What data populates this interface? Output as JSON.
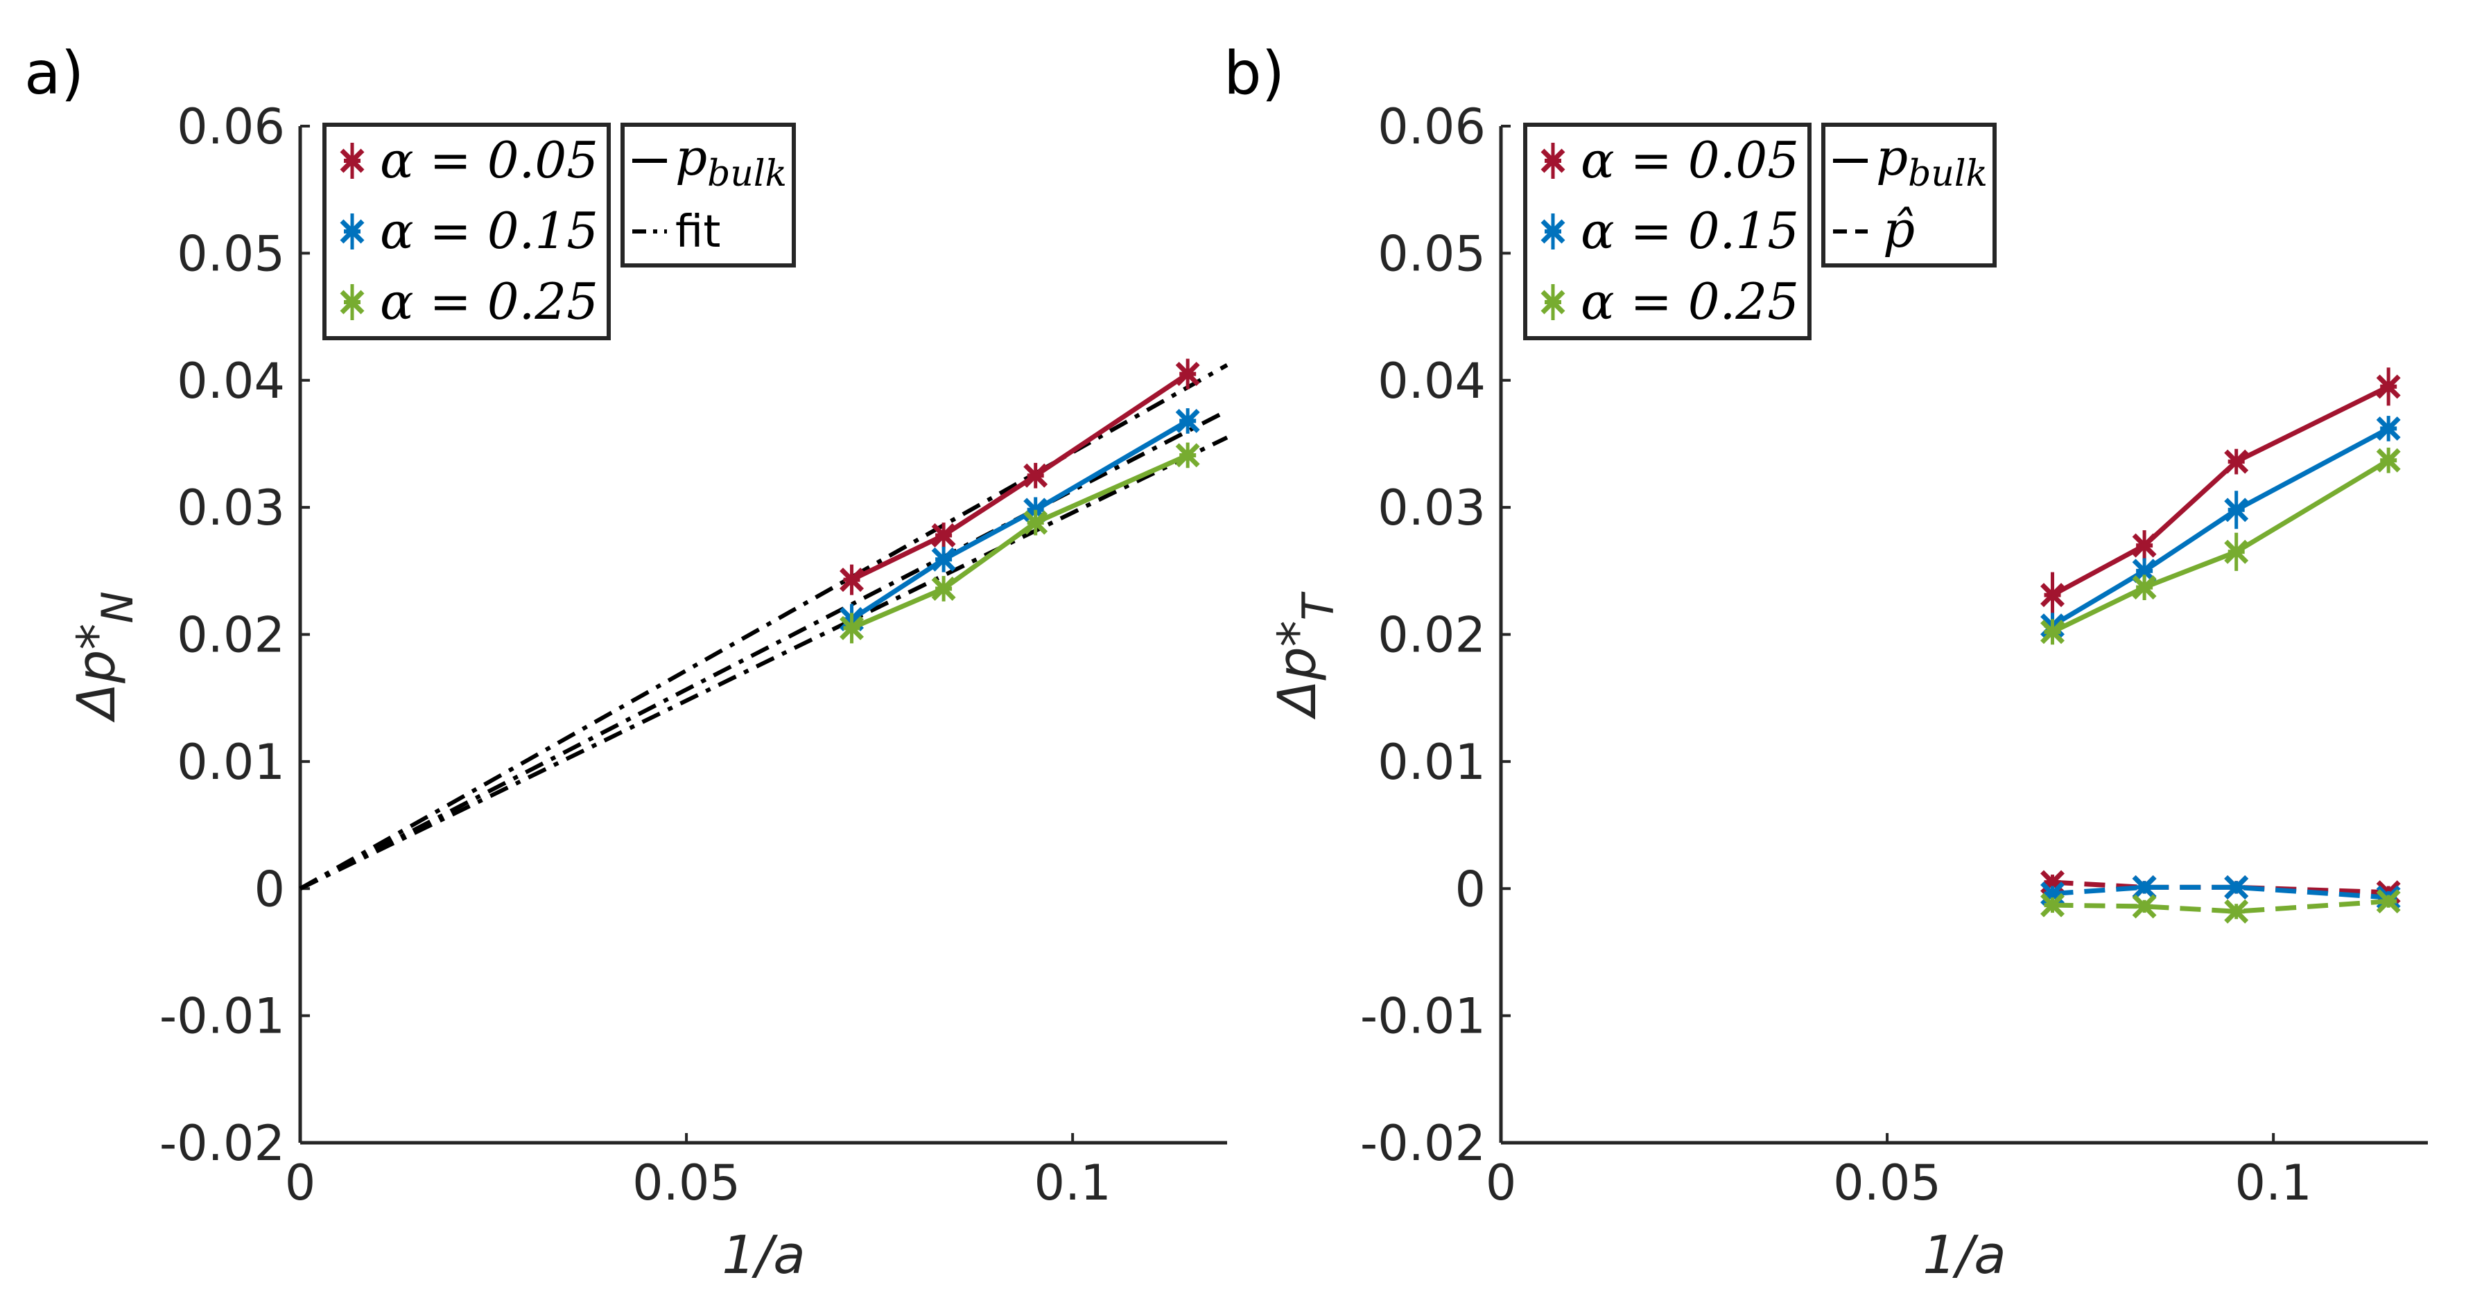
{
  "colors": {
    "red": "#A2142F",
    "blue": "#0072BD",
    "green": "#77AC30",
    "black": "#000000",
    "axis": "#262626"
  },
  "chart_data": [
    {
      "panel": "a)",
      "type": "line",
      "xlabel": "1/a",
      "ylabel_main": "Δp*",
      "ylabel_sub": "N",
      "xlim": [
        0,
        0.12
      ],
      "ylim": [
        -0.02,
        0.06
      ],
      "xticks": [
        0,
        0.05,
        0.1
      ],
      "xtick_labels": [
        "0",
        "0.05",
        "0.1"
      ],
      "yticks": [
        -0.02,
        -0.01,
        0,
        0.01,
        0.02,
        0.03,
        0.04,
        0.05,
        0.06
      ],
      "ytick_labels": [
        "-0.02",
        "-0.01",
        "0",
        "0.01",
        "0.02",
        "0.03",
        "0.04",
        "0.05",
        "0.06"
      ],
      "x": [
        0.0714,
        0.0833,
        0.0952,
        0.1149
      ],
      "series": [
        {
          "name": "α = 0.05",
          "style": "solid",
          "color": "red",
          "values": [
            0.0243,
            0.0278,
            0.0325,
            0.0405
          ],
          "err": [
            0.0012,
            0.001,
            0.001,
            0.0012
          ]
        },
        {
          "name": "α = 0.15",
          "style": "solid",
          "color": "blue",
          "values": [
            0.0212,
            0.0259,
            0.0298,
            0.0368
          ],
          "err": [
            0.0012,
            0.001,
            0.001,
            0.001
          ]
        },
        {
          "name": "α = 0.25",
          "style": "solid",
          "color": "green",
          "values": [
            0.0205,
            0.0236,
            0.0288,
            0.0341
          ],
          "err": [
            0.0012,
            0.001,
            0.001,
            0.001
          ]
        }
      ],
      "fit_lines": [
        {
          "name": "fit",
          "style": "dashdot",
          "x": [
            0,
            0.12
          ],
          "y": [
            0,
            0.0412
          ]
        },
        {
          "name": "fit",
          "style": "dashdot",
          "x": [
            0,
            0.12
          ],
          "y": [
            0,
            0.0376
          ]
        },
        {
          "name": "fit",
          "style": "dashdot",
          "x": [
            0,
            0.12
          ],
          "y": [
            0,
            0.0355
          ]
        }
      ],
      "legend_series": [
        "α = 0.05",
        "α = 0.15",
        "α = 0.25"
      ],
      "legend_styles": [
        {
          "label": "p_bulk",
          "main": "p",
          "sub": "bulk",
          "style": "solid"
        },
        {
          "label": "fit",
          "main": "fit",
          "sub": "",
          "style": "dashdot"
        }
      ],
      "legend_placement": "top-left"
    },
    {
      "panel": "b)",
      "type": "line",
      "xlabel": "1/a",
      "ylabel_main": "Δp*",
      "ylabel_sub": "T",
      "xlim": [
        0,
        0.12
      ],
      "ylim": [
        -0.02,
        0.06
      ],
      "xticks": [
        0,
        0.05,
        0.1
      ],
      "xtick_labels": [
        "0",
        "0.05",
        "0.1"
      ],
      "yticks": [
        -0.02,
        -0.01,
        0,
        0.01,
        0.02,
        0.03,
        0.04,
        0.05,
        0.06
      ],
      "ytick_labels": [
        "-0.02",
        "-0.01",
        "0",
        "0.01",
        "0.02",
        "0.03",
        "0.04",
        "0.05",
        "0.06"
      ],
      "x": [
        0.0714,
        0.0833,
        0.0952,
        0.1149
      ],
      "series": [
        {
          "name": "α = 0.05 (p_bulk)",
          "style": "solid",
          "color": "red",
          "values": [
            0.0231,
            0.027,
            0.0336,
            0.0395
          ],
          "err": [
            0.0018,
            0.0012,
            0.001,
            0.0015
          ]
        },
        {
          "name": "α = 0.15 (p_bulk)",
          "style": "solid",
          "color": "blue",
          "values": [
            0.0207,
            0.025,
            0.0298,
            0.0362
          ],
          "err": [
            0.001,
            0.001,
            0.0015,
            0.001
          ]
        },
        {
          "name": "α = 0.25 (p_bulk)",
          "style": "solid",
          "color": "green",
          "values": [
            0.0202,
            0.0237,
            0.0265,
            0.0337
          ],
          "err": [
            0.001,
            0.001,
            0.0015,
            0.001
          ]
        },
        {
          "name": "α = 0.05 (p̂)",
          "style": "dashed",
          "color": "red",
          "values": [
            0.0005,
            0.0001,
            0.0001,
            -0.0003
          ],
          "err": [
            0.0006,
            0.0005,
            0.0005,
            0.0005
          ]
        },
        {
          "name": "α = 0.15 (p̂)",
          "style": "dashed",
          "color": "blue",
          "values": [
            -0.0004,
            0.0001,
            0.0001,
            -0.0007
          ],
          "err": [
            0.0006,
            0.0005,
            0.0005,
            0.0005
          ]
        },
        {
          "name": "α = 0.25 (p̂)",
          "style": "dashed",
          "color": "green",
          "values": [
            -0.0013,
            -0.0014,
            -0.0018,
            -0.001
          ],
          "err": [
            0.0006,
            0.0005,
            0.0006,
            0.0005
          ]
        }
      ],
      "legend_series": [
        "α = 0.05",
        "α = 0.15",
        "α = 0.25"
      ],
      "legend_styles": [
        {
          "label": "p_bulk",
          "main": "p",
          "sub": "bulk",
          "style": "solid"
        },
        {
          "label": "p̂",
          "main": "p̂",
          "sub": "",
          "style": "dashed"
        }
      ],
      "legend_placement": "top-left"
    }
  ]
}
